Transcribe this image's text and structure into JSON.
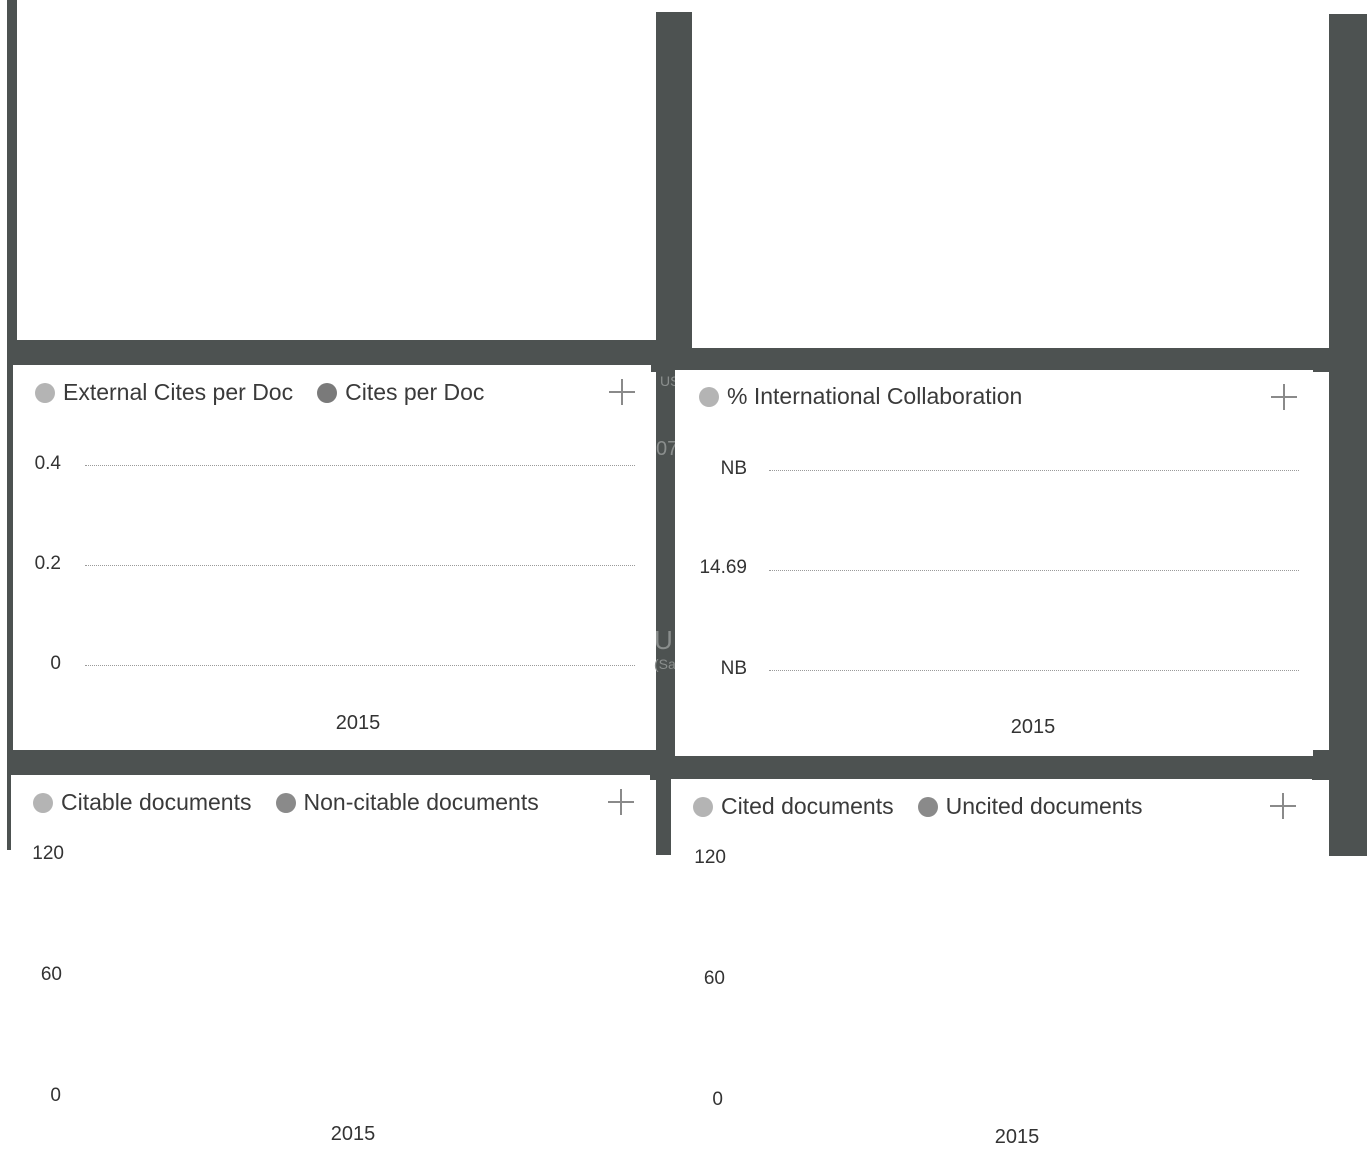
{
  "chart_data": [
    {
      "type": "line",
      "legend": [
        "External Cites per Doc",
        "Cites per Doc"
      ],
      "legend_colors": [
        "#b4b4b4",
        "#7a7a7a"
      ],
      "yticks": [
        "0.4",
        "0.2",
        "0"
      ],
      "ylim": [
        0,
        0.4
      ],
      "categories": [
        "2015"
      ],
      "series": [],
      "grid": true
    },
    {
      "type": "line",
      "legend": [
        "% International Collaboration"
      ],
      "legend_colors": [
        "#b4b4b4"
      ],
      "yticks": [
        "NB",
        "14.69",
        "NB"
      ],
      "categories": [
        "2015"
      ],
      "series": [],
      "grid": true
    },
    {
      "type": "bar",
      "legend": [
        "Citable documents",
        "Non-citable documents"
      ],
      "legend_colors": [
        "#b4b4b4",
        "#8a8a8a"
      ],
      "yticks": [
        "120",
        "60",
        "0"
      ],
      "ylim": [
        0,
        120
      ],
      "categories": [
        "2015"
      ],
      "series": [],
      "grid": false
    },
    {
      "type": "bar",
      "legend": [
        "Cited documents",
        "Uncited documents"
      ],
      "legend_colors": [
        "#b4b4b4",
        "#8a8a8a"
      ],
      "yticks": [
        "120",
        "60",
        "0"
      ],
      "ylim": [
        0,
        120
      ],
      "categories": [
        "2015"
      ],
      "series": [],
      "grid": false
    }
  ],
  "icons": {
    "expand": "plus-icon"
  },
  "colors": {
    "frame": "#4d5251",
    "panel": "#ffffff",
    "grid": "#9a9a9a"
  }
}
